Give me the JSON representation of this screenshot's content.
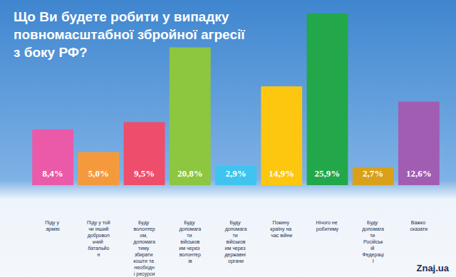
{
  "chart_data": {
    "type": "bar",
    "title": "Що Ви будете робити у випадку\nповномасштабної збройної агресії\nз боку РФ?",
    "categories": [
      "Піду у армію",
      "Піду у той чи інший добровольчий батальйон",
      "Буду волонтером, допомагатиму збирати кошти та необхідні ресурси",
      "Буду допомагати військовим через волонтерів",
      "Буду допомагати військовим через державні органи",
      "Покину країну на час війни",
      "Нічого не робитиму",
      "Буду допомагати Російській Федерації",
      "Важко сказати"
    ],
    "values": [
      8.4,
      5.0,
      9.5,
      20.8,
      2.9,
      14.9,
      25.9,
      2.7,
      12.6
    ],
    "value_labels": [
      "8,4%",
      "5,0%",
      "9,5%",
      "20,8%",
      "2,9%",
      "14,9%",
      "25,9%",
      "2,7%",
      "12,6%"
    ],
    "colors": [
      "#ea5aa9",
      "#f59a3c",
      "#ee4d6c",
      "#8dc63f",
      "#3ec4ef",
      "#fdc70f",
      "#22a84a",
      "#d9a11a",
      "#a15db2"
    ],
    "ylim": [
      0,
      26
    ],
    "grid": false,
    "data_labels": true,
    "tick_labels": "x",
    "annotations": [
      "Znaj.ua"
    ]
  }
}
